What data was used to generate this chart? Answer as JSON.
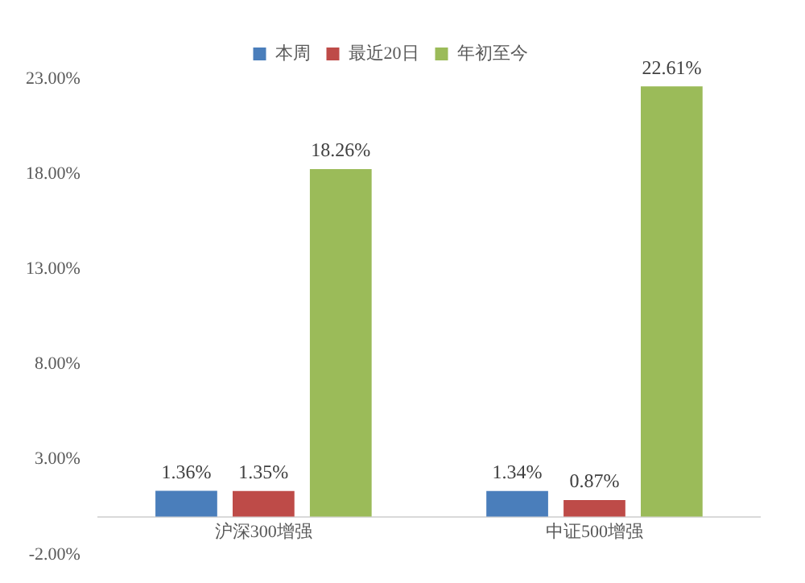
{
  "chart_data": {
    "type": "bar",
    "categories": [
      "沪深300增强",
      "中证500增强"
    ],
    "series": [
      {
        "name": "本周",
        "color": "#4a7ebb",
        "values": [
          1.36,
          1.34
        ],
        "value_labels": [
          "1.36%",
          "1.34%"
        ]
      },
      {
        "name": "最近20日",
        "color": "#be4b48",
        "values": [
          1.35,
          0.87
        ],
        "value_labels": [
          "1.35%",
          "0.87%"
        ]
      },
      {
        "name": "年初至今",
        "color": "#9bbb59",
        "values": [
          18.26,
          22.61
        ],
        "value_labels": [
          "18.26%",
          "22.61%"
        ]
      }
    ],
    "ylim": [
      -2,
      23
    ],
    "yticks": [
      {
        "value": -2,
        "label": "-2.00%"
      },
      {
        "value": 3,
        "label": "3.00%"
      },
      {
        "value": 8,
        "label": "8.00%"
      },
      {
        "value": 13,
        "label": "13.00%"
      },
      {
        "value": 18,
        "label": "18.00%"
      },
      {
        "value": 23,
        "label": "23.00%"
      }
    ],
    "grid": false,
    "legend": "top"
  }
}
